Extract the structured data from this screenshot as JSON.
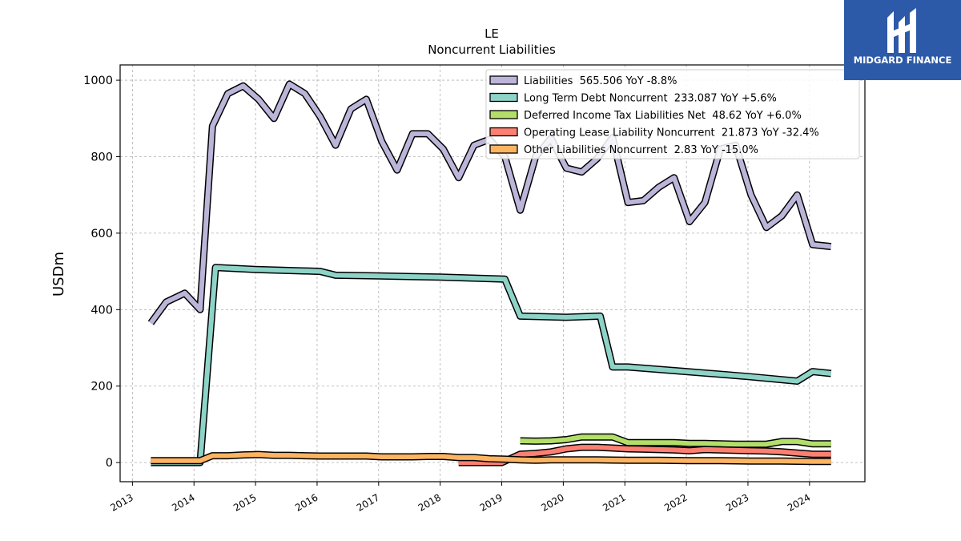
{
  "brand": {
    "name": "MIDGARD FINANCE",
    "icon": "midgard-logo-icon",
    "bg_color": "#2d5aa8"
  },
  "chart_data": {
    "type": "line",
    "title": "LE",
    "subtitle": "Noncurrent  Liabilities",
    "xlabel": "",
    "ylabel": "USDm",
    "xlim": [
      2012.8,
      2024.9
    ],
    "ylim": [
      -50,
      1040
    ],
    "x_ticks": [
      2013,
      2014,
      2015,
      2016,
      2017,
      2018,
      2019,
      2020,
      2021,
      2022,
      2023,
      2024
    ],
    "y_ticks": [
      0,
      200,
      400,
      600,
      800,
      1000
    ],
    "grid": true,
    "legend_position": "top-right",
    "series": [
      {
        "name": "Liabilities",
        "legend": "Liabilities  565.506 YoY -8.8%",
        "color": "#bcb5d9",
        "x": [
          2013.3,
          2013.55,
          2013.85,
          2014.1,
          2014.3,
          2014.55,
          2014.8,
          2015.05,
          2015.3,
          2015.55,
          2015.8,
          2016.05,
          2016.3,
          2016.55,
          2016.8,
          2017.05,
          2017.3,
          2017.55,
          2017.8,
          2018.05,
          2018.3,
          2018.55,
          2018.8,
          2019.05,
          2019.3,
          2019.55,
          2019.8,
          2020.05,
          2020.3,
          2020.55,
          2020.8,
          2021.05,
          2021.3,
          2021.55,
          2021.8,
          2022.05,
          2022.3,
          2022.55,
          2022.8,
          2023.05,
          2023.3,
          2023.55,
          2023.8,
          2024.05,
          2024.35
        ],
        "values": [
          365,
          420,
          443,
          400,
          880,
          965,
          985,
          950,
          900,
          990,
          965,
          905,
          830,
          925,
          950,
          840,
          765,
          860,
          860,
          820,
          745,
          830,
          845,
          800,
          660,
          800,
          848,
          770,
          760,
          795,
          850,
          680,
          685,
          720,
          745,
          630,
          680,
          820,
          830,
          700,
          615,
          645,
          700,
          570,
          565
        ]
      },
      {
        "name": "Long Term Debt Noncurrent",
        "legend": "Long Term Debt Noncurrent  233.087 YoY +5.6%",
        "color": "#8dd3c7",
        "x": [
          2013.3,
          2014.1,
          2014.35,
          2015.0,
          2016.05,
          2016.3,
          2017.0,
          2018.0,
          2019.05,
          2019.3,
          2020.05,
          2020.6,
          2020.8,
          2021.05,
          2022.0,
          2023.0,
          2023.8,
          2024.05,
          2024.35
        ],
        "values": [
          0,
          0,
          510,
          505,
          500,
          490,
          488,
          485,
          480,
          383,
          380,
          383,
          250,
          250,
          238,
          225,
          213,
          238,
          233
        ]
      },
      {
        "name": "Deferred Income Tax Liabilities Net",
        "legend": "Deferred Income Tax Liabilities Net  48.62 YoY +6.0%",
        "color": "#b3de69",
        "x": [
          2019.3,
          2019.55,
          2019.8,
          2020.05,
          2020.3,
          2020.55,
          2020.8,
          2021.05,
          2021.3,
          2021.55,
          2021.8,
          2022.05,
          2022.3,
          2022.55,
          2022.8,
          2023.05,
          2023.3,
          2023.55,
          2023.8,
          2024.05,
          2024.35
        ],
        "values": [
          57,
          56,
          57,
          60,
          67,
          67,
          67,
          52,
          52,
          52,
          52,
          50,
          50,
          49,
          48,
          48,
          48,
          55,
          55,
          49,
          49
        ]
      },
      {
        "name": "Operating Lease Liability Noncurrent",
        "legend": "Operating Lease Liability Noncurrent  21.873 YoY -32.4%",
        "color": "#fb8072",
        "x": [
          2018.3,
          2019.0,
          2019.3,
          2019.55,
          2019.8,
          2020.05,
          2020.3,
          2020.55,
          2020.8,
          2021.05,
          2021.3,
          2021.55,
          2021.8,
          2022.05,
          2022.3,
          2022.55,
          2022.8,
          2023.05,
          2023.3,
          2023.55,
          2023.8,
          2024.05,
          2024.35
        ],
        "values": [
          0,
          0,
          22,
          24,
          28,
          36,
          40,
          40,
          38,
          36,
          35,
          34,
          33,
          31,
          34,
          33,
          32,
          31,
          30,
          28,
          25,
          22,
          22
        ]
      },
      {
        "name": "Other Liabilities Noncurrent",
        "legend": "Other Liabilities Noncurrent  2.83 YoY -15.0%",
        "color": "#fdb462",
        "x": [
          2013.3,
          2014.1,
          2014.3,
          2014.55,
          2014.8,
          2015.05,
          2015.3,
          2015.55,
          2015.8,
          2016.05,
          2016.3,
          2016.55,
          2016.8,
          2017.05,
          2017.3,
          2017.55,
          2017.8,
          2018.05,
          2018.3,
          2018.55,
          2018.8,
          2019.05,
          2019.3,
          2019.55,
          2019.8,
          2020.05,
          2020.55,
          2021.05,
          2021.55,
          2022.05,
          2022.55,
          2023.05,
          2023.55,
          2024.05,
          2024.35
        ],
        "values": [
          5,
          5,
          18,
          18,
          20,
          21,
          19,
          19,
          18,
          17,
          17,
          17,
          17,
          15,
          15,
          15,
          16,
          16,
          13,
          13,
          10,
          9,
          7,
          6,
          7,
          7,
          7,
          6,
          6,
          5,
          5,
          4,
          4,
          3,
          3
        ]
      }
    ]
  }
}
